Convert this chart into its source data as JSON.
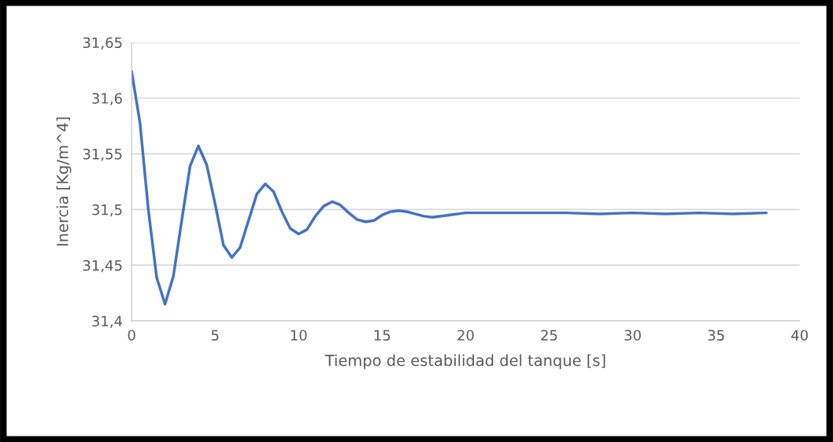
{
  "chart_data": {
    "type": "line",
    "xlabel": "Tiempo de estabilidad del tanque [s]",
    "ylabel": "Inercia [Kg/m^4]",
    "series": [
      {
        "color": "#4472c4",
        "x": [
          0,
          0.5,
          1,
          1.5,
          2,
          2.5,
          3,
          3.5,
          4,
          4.5,
          5,
          5.5,
          6,
          6.5,
          7,
          7.5,
          8,
          8.5,
          9,
          9.5,
          10,
          10.5,
          11,
          11.5,
          12,
          12.5,
          13,
          13.5,
          14,
          14.5,
          15,
          15.5,
          16,
          16.5,
          17,
          17.5,
          18,
          19,
          20,
          22,
          24,
          26,
          28,
          30,
          32,
          34,
          36,
          38
        ],
        "values": [
          31.624,
          31.578,
          31.5,
          31.439,
          31.415,
          31.44,
          31.49,
          31.539,
          31.557,
          31.54,
          31.505,
          31.468,
          31.457,
          31.466,
          31.49,
          31.514,
          31.523,
          31.516,
          31.498,
          31.483,
          31.478,
          31.482,
          31.494,
          31.503,
          31.507,
          31.504,
          31.497,
          31.491,
          31.489,
          31.49,
          31.495,
          31.498,
          31.499,
          31.498,
          31.496,
          31.494,
          31.493,
          31.495,
          31.497,
          31.497,
          31.497,
          31.497,
          31.496,
          31.497,
          31.496,
          31.497,
          31.496,
          31.497
        ]
      }
    ],
    "xlim": [
      0,
      40
    ],
    "xticks": [
      0,
      5,
      10,
      15,
      20,
      25,
      30,
      35,
      40
    ],
    "ylim": [
      31.4,
      31.65
    ],
    "yticks": [
      {
        "value": 31.4,
        "label": "31,4"
      },
      {
        "value": 31.45,
        "label": "31,45"
      },
      {
        "value": 31.5,
        "label": "31,5"
      },
      {
        "value": 31.55,
        "label": "31,55"
      },
      {
        "value": 31.6,
        "label": "31,6"
      },
      {
        "value": 31.65,
        "label": "31,65"
      }
    ],
    "grid": "y",
    "line_style": "solid"
  }
}
